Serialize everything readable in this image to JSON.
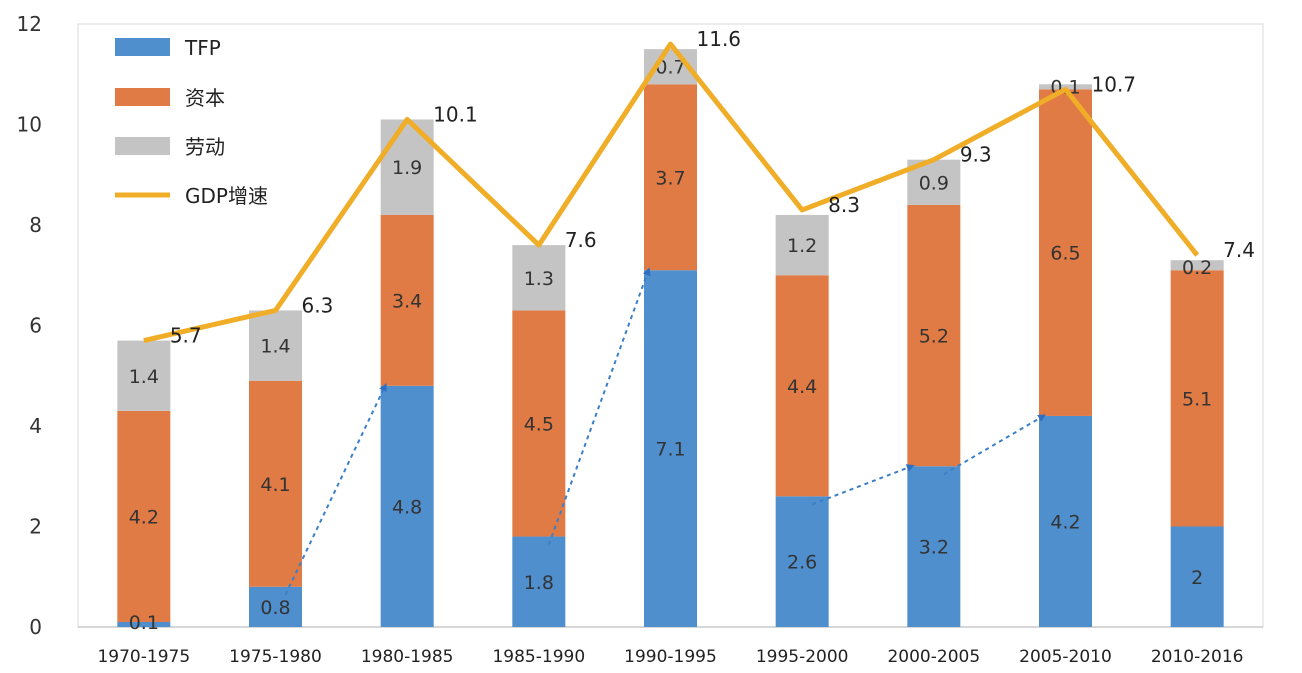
{
  "chart_data": {
    "type": "bar",
    "categories": [
      "1970-1975",
      "1975-1980",
      "1980-1985",
      "1985-1990",
      "1990-1995",
      "1995-2000",
      "2000-2005",
      "2005-2010",
      "2010-2016"
    ],
    "y_ticks": [
      "0",
      "2",
      "4",
      "6",
      "8",
      "10",
      "12"
    ],
    "ylim": [
      0,
      12
    ],
    "stacked": true,
    "series": [
      {
        "name": "TFP",
        "kind": "bar",
        "color": "#4f8fcd",
        "values": [
          0.1,
          0.8,
          4.8,
          1.8,
          7.1,
          2.6,
          3.2,
          4.2,
          2
        ]
      },
      {
        "name": "资本",
        "kind": "bar",
        "color": "#e07b45",
        "values": [
          4.2,
          4.1,
          3.4,
          4.5,
          3.7,
          4.4,
          5.2,
          6.5,
          5.1
        ]
      },
      {
        "name": "劳动",
        "kind": "bar",
        "color": "#c4c4c4",
        "values": [
          1.4,
          1.4,
          1.9,
          1.3,
          0.7,
          1.2,
          0.9,
          0.1,
          0.2
        ]
      },
      {
        "name": "GDP增速",
        "kind": "line",
        "color": "#f0ad27",
        "values": [
          5.7,
          6.3,
          10.1,
          7.6,
          11.6,
          8.3,
          9.3,
          10.7,
          7.4
        ]
      }
    ],
    "value_labels": {
      "TFP": [
        "0.1",
        "0.8",
        "4.8",
        "1.8",
        "7.1",
        "2.6",
        "3.2",
        "4.2",
        "2"
      ],
      "资本": [
        "4.2",
        "4.1",
        "3.4",
        "4.5",
        "3.7",
        "4.4",
        "5.2",
        "6.5",
        "5.1"
      ],
      "劳动": [
        "1.4",
        "1.4",
        "1.9",
        "1.3",
        "0.7",
        "1.2",
        "0.9",
        "0.1",
        "0.2"
      ],
      "GDP增速": [
        "5.7",
        "6.3",
        "10.1",
        "7.6",
        "11.6",
        "8.3",
        "9.3",
        "10.7",
        "7.4"
      ]
    },
    "tfp_trend_arrows": [
      [
        1,
        2
      ],
      [
        3,
        4
      ],
      [
        5,
        6
      ],
      [
        6,
        7
      ]
    ],
    "legend_position": "top-left",
    "grid": false
  }
}
